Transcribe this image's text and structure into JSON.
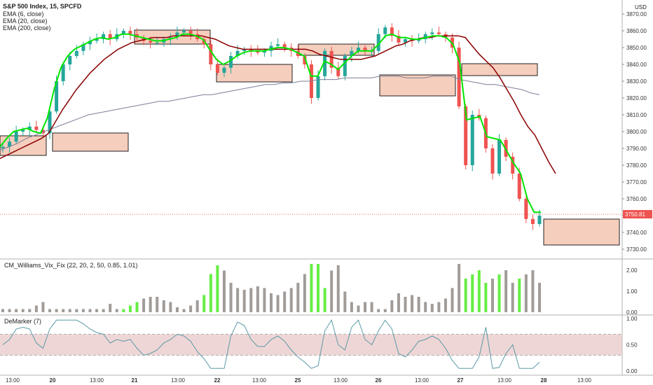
{
  "header": {
    "title": "S&P 500 Index, 15, SPCFD",
    "indicators": [
      "EMA (6, close)",
      "EMA (20, close)",
      "EMA (200, close)"
    ],
    "currency": "USD"
  },
  "price_axis": {
    "ticks": [
      "3870.00",
      "3860.00",
      "3850.00",
      "3840.00",
      "3830.00",
      "3820.00",
      "3810.00",
      "3800.00",
      "3790.00",
      "3780.00",
      "3770.00",
      "3760.00",
      "3750.00",
      "3740.00",
      "3730.00"
    ],
    "last_price": "3750.81",
    "last_price_color": "#ef5350"
  },
  "vix_panel": {
    "title": "CM_Williams_Vix_Fix (22, 20, 2, 50, 0.85, 1.01)",
    "ticks": [
      "2.00",
      "1.00",
      "0.00"
    ]
  },
  "demarker_panel": {
    "title": "DeMarker (7)",
    "ticks": [
      "1.00",
      "0.50",
      "0.00"
    ]
  },
  "time_axis": {
    "labels": [
      "13:00",
      "20",
      "13:00",
      "21",
      "13:00",
      "22",
      "13:00",
      "25",
      "13:00",
      "26",
      "13:00",
      "27",
      "13:00",
      "28",
      "13:00"
    ]
  },
  "colors": {
    "up": "#26a69a",
    "down": "#ef5350",
    "ema6": "#00e600",
    "ema20": "#8b0000",
    "ema200": "#7b7f99",
    "zone_fill": "#f5c6b2",
    "vix_green": "#66ee44",
    "vix_grey": "#a19c98",
    "demarker_line": "#5a9aa6",
    "demarker_band": "#e8c4c4"
  },
  "chart_data": {
    "type": "candlestick",
    "ylim": [
      3726,
      3876
    ],
    "series": [
      {
        "name": "EMA (6, close)",
        "values": [
          3791,
          3796,
          3800,
          3801,
          3802,
          3800,
          3799,
          3808,
          3825,
          3838,
          3845,
          3849,
          3851,
          3853,
          3855,
          3856,
          3855,
          3856,
          3858,
          3858,
          3857,
          3856,
          3855,
          3854,
          3854,
          3855,
          3856,
          3858,
          3858,
          3857,
          3855,
          3849,
          3843,
          3840,
          3842,
          3845,
          3847,
          3848,
          3848,
          3848,
          3849,
          3850,
          3850,
          3849,
          3847,
          3845,
          3833,
          3833,
          3842,
          3840,
          3837,
          3841,
          3845,
          3848,
          3848,
          3848,
          3852,
          3857,
          3858,
          3856,
          3856,
          3855,
          3855,
          3856,
          3857,
          3857,
          3856,
          3852,
          3841,
          3807,
          3808,
          3809,
          3797,
          3796,
          3795,
          3788,
          3781,
          3775,
          3760,
          3752,
          3752
        ]
      },
      {
        "name": "EMA (20, close)",
        "values": [
          3784,
          3786,
          3788,
          3790,
          3792,
          3794,
          3796,
          3799,
          3806,
          3813,
          3819,
          3825,
          3830,
          3835,
          3839,
          3843,
          3846,
          3849,
          3851,
          3853,
          3854,
          3855,
          3856,
          3856,
          3856,
          3857,
          3857,
          3857,
          3857,
          3857,
          3856,
          3855,
          3853,
          3851,
          3850,
          3849,
          3849,
          3849,
          3849,
          3849,
          3849,
          3849,
          3849,
          3849,
          3849,
          3848,
          3846,
          3845,
          3844,
          3843,
          3843,
          3843,
          3843,
          3844,
          3845,
          3847,
          3849,
          3851,
          3852,
          3854,
          3855,
          3856,
          3856,
          3857,
          3857,
          3857,
          3857,
          3856,
          3851,
          3846,
          3842,
          3838,
          3832,
          3825,
          3818,
          3810,
          3803,
          3798,
          3790,
          3782,
          3775
        ]
      },
      {
        "name": "EMA (200, close)",
        "values": [
          3789,
          3791,
          3793,
          3796,
          3798,
          3800,
          3802,
          3804,
          3806,
          3808,
          3810,
          3811,
          3812,
          3813,
          3814,
          3815,
          3816,
          3817,
          3818,
          3818,
          3819,
          3820,
          3821,
          3822,
          3822,
          3823,
          3824,
          3825,
          3826,
          3827,
          3828,
          3828,
          3829,
          3829,
          3830,
          3830,
          3831,
          3831,
          3831,
          3832,
          3832,
          3832,
          3832,
          3833,
          3833,
          3833,
          3832,
          3832,
          3832,
          3833,
          3833,
          3833,
          3831,
          3830,
          3829,
          3828,
          3828,
          3827,
          3826,
          3825,
          3823,
          3822
        ]
      },
      {
        "name": "Price",
        "values": [
          3791,
          3794,
          3800,
          3801,
          3803,
          3801,
          3799,
          3812,
          3830,
          3840,
          3845,
          3848,
          3852,
          3854,
          3855,
          3858,
          3855,
          3858,
          3860,
          3858,
          3856,
          3854,
          3853,
          3853,
          3855,
          3856,
          3859,
          3860,
          3858,
          3855,
          3852,
          3840,
          3835,
          3838,
          3845,
          3848,
          3849,
          3848,
          3847,
          3848,
          3851,
          3852,
          3850,
          3848,
          3845,
          3840,
          3820,
          3833,
          3848,
          3838,
          3833,
          3845,
          3848,
          3850,
          3848,
          3848,
          3858,
          3862,
          3857,
          3853,
          3855,
          3854,
          3855,
          3858,
          3859,
          3858,
          3856,
          3850,
          3815,
          3780,
          3810,
          3808,
          3790,
          3775,
          3795,
          3785,
          3775,
          3760,
          3748,
          3745,
          3750
        ]
      }
    ]
  }
}
